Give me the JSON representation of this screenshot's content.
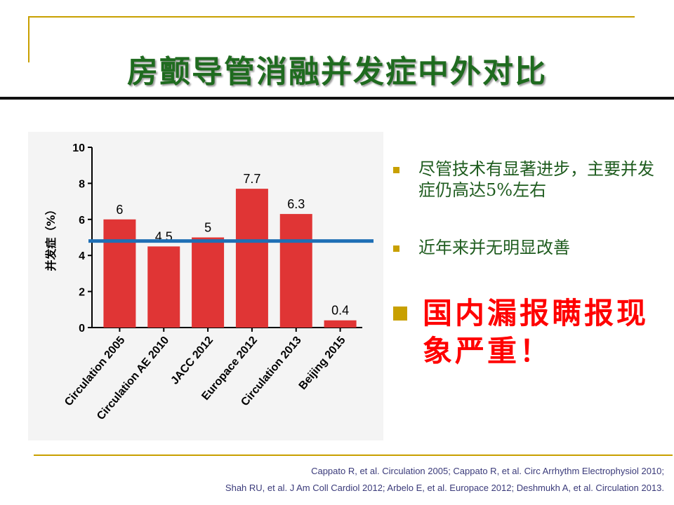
{
  "slide": {
    "title": "房颤导管消融并发症中外对比",
    "bullets": [
      "尽管技术有显著进步，主要并发症仍高达5%左右",
      "近年来并无明显改善",
      "国内漏报瞒报现象严重！"
    ],
    "references": [
      "Cappato R, et al. Circulation 2005; Cappato R, et al. Circ Arrhythm Electrophysiol 2010;",
      "Shah RU, et al. J Am Coll Cardiol 2012; Arbelo E, et al. Europace 2012; Deshmukh A, et al. Circulation 2013."
    ]
  },
  "colors": {
    "title": "#1f6b1f",
    "bar": "#e03535",
    "reference_line": "#1f6fb5",
    "emphasis": "#ff0000",
    "accent": "#c8a000"
  },
  "chart_data": {
    "type": "bar",
    "categories": [
      "Circulation 2005",
      "Circulation AE 2010",
      "JACC 2012",
      "Europace 2012",
      "Circulation 2013",
      "Beijing 2015"
    ],
    "values": [
      6,
      4.5,
      5,
      7.7,
      6.3,
      0.4
    ],
    "data_labels": [
      "6",
      "4.5",
      "5",
      "7.7",
      "6.3",
      "0.4"
    ],
    "ylabel": "并发症（%）",
    "ylim": [
      0,
      10
    ],
    "yticks": [
      "0",
      "2",
      "4",
      "6",
      "8",
      "10"
    ],
    "reference_line_value": 4.8,
    "grid": false
  }
}
